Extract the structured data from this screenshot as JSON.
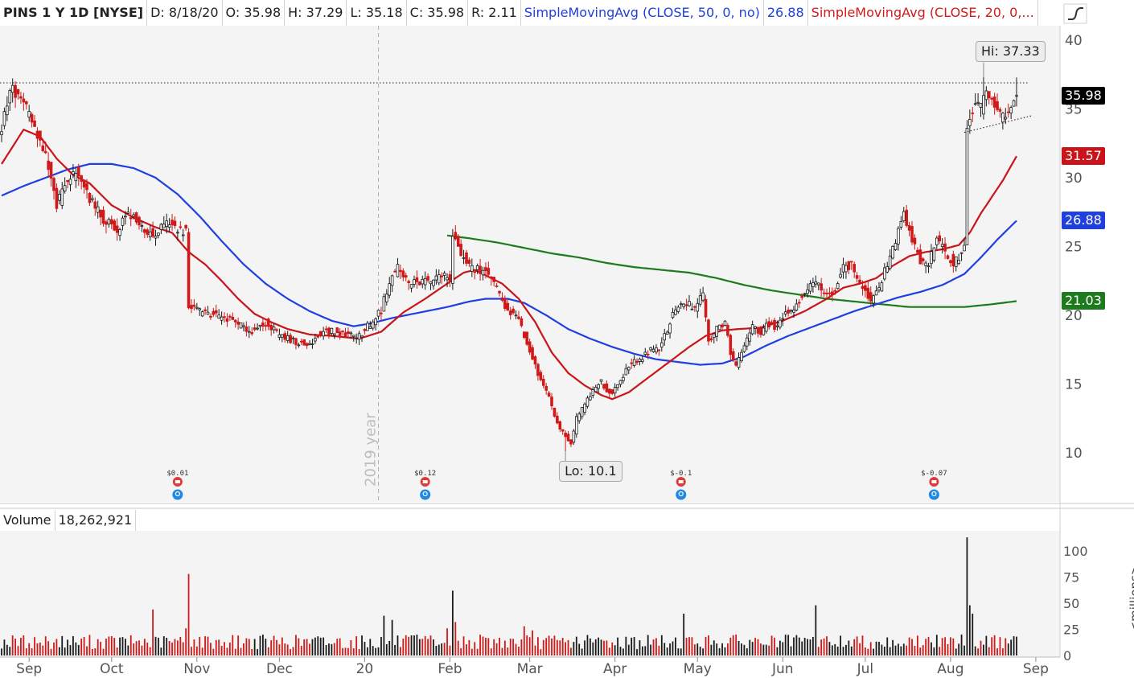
{
  "header": {
    "symbol": "PINS 1 Y 1D [NYSE]",
    "date": "D: 8/18/20",
    "open": "O: 35.98",
    "high": "H: 37.29",
    "low": "L: 35.18",
    "close": "C: 35.98",
    "range": "R: 2.11",
    "sma50_label": "SimpleMovingAvg (CLOSE, 50, 0, no)",
    "sma50_value": "26.88",
    "sma20_label": "SimpleMovingAvg (CLOSE, 20, 0,..."
  },
  "volume_header": {
    "label": "Volume",
    "value": "18,262,921"
  },
  "price_tags": [
    {
      "text": "35.98",
      "value": 35.98,
      "color": "#000000"
    },
    {
      "text": "31.57",
      "value": 31.57,
      "color": "#c9141a"
    },
    {
      "text": "26.88",
      "value": 26.88,
      "color": "#1f3fe0"
    },
    {
      "text": "21.03",
      "value": 21.03,
      "color": "#1d7a1d"
    }
  ],
  "callouts": {
    "high": "Hi: 37.33",
    "low": "Lo: 10.1"
  },
  "watermark": "2019 year",
  "volume_unit": "<millions>",
  "events": [
    {
      "label": "$0.01",
      "day": 64
    },
    {
      "label": "$0.12",
      "day": 154
    },
    {
      "label": "$-0.1",
      "day": 247
    },
    {
      "label": "$-0.07",
      "day": 339
    }
  ],
  "chart_data": {
    "type": "candlestick",
    "symbol": "PINS",
    "exchange": "NYSE",
    "price_axis": {
      "ticks": [
        10,
        15,
        20,
        25,
        30,
        35,
        40
      ],
      "range": [
        7,
        41
      ]
    },
    "volume_axis": {
      "ticks": [
        0,
        25,
        50,
        75,
        100
      ],
      "unit": "millions",
      "range": [
        0,
        115
      ]
    },
    "x_ticks": [
      {
        "label": "Sep",
        "day": 10
      },
      {
        "label": "Oct",
        "day": 40
      },
      {
        "label": "Nov",
        "day": 71
      },
      {
        "label": "Dec",
        "day": 101
      },
      {
        "label": "20",
        "day": 132
      },
      {
        "label": "Feb",
        "day": 163
      },
      {
        "label": "Mar",
        "day": 192
      },
      {
        "label": "Apr",
        "day": 223
      },
      {
        "label": "May",
        "day": 253
      },
      {
        "label": "Jun",
        "day": 284
      },
      {
        "label": "Jul",
        "day": 314
      },
      {
        "label": "Aug",
        "day": 345
      },
      {
        "label": "Sep",
        "day": 376
      }
    ],
    "price_anchors": [
      [
        0,
        33.5
      ],
      [
        3,
        36.5
      ],
      [
        8,
        35.5
      ],
      [
        12,
        33.5
      ],
      [
        16,
        31.5
      ],
      [
        20,
        28
      ],
      [
        24,
        29.8
      ],
      [
        28,
        30.5
      ],
      [
        32,
        28.5
      ],
      [
        36,
        27.2
      ],
      [
        42,
        26.2
      ],
      [
        46,
        27.5
      ],
      [
        50,
        26.5
      ],
      [
        55,
        25.8
      ],
      [
        60,
        26.6
      ],
      [
        67,
        26.0
      ],
      [
        68,
        20.8
      ],
      [
        72,
        20.3
      ],
      [
        77,
        20.0
      ],
      [
        82,
        19.8
      ],
      [
        87,
        19.2
      ],
      [
        91,
        18.8
      ],
      [
        96,
        19.5
      ],
      [
        101,
        18.5
      ],
      [
        108,
        18.0
      ],
      [
        112,
        17.8
      ],
      [
        116,
        18.8
      ],
      [
        120,
        18.8
      ],
      [
        126,
        18.6
      ],
      [
        130,
        18.5
      ],
      [
        134,
        19.4
      ],
      [
        138,
        20.4
      ],
      [
        141,
        22.5
      ],
      [
        144,
        23.5
      ],
      [
        148,
        22.3
      ],
      [
        152,
        22.5
      ],
      [
        156,
        22.4
      ],
      [
        160,
        23.0
      ],
      [
        163,
        22.6
      ],
      [
        164,
        26.0
      ],
      [
        166,
        24.8
      ],
      [
        170,
        23.5
      ],
      [
        175,
        23.2
      ],
      [
        178,
        22.8
      ],
      [
        182,
        21.0
      ],
      [
        186,
        20.0
      ],
      [
        188,
        19.6
      ],
      [
        190,
        18.6
      ],
      [
        193,
        16.8
      ],
      [
        196,
        15.2
      ],
      [
        199,
        14.0
      ],
      [
        201,
        12.5
      ],
      [
        205,
        11.2
      ],
      [
        207,
        10.6
      ],
      [
        209,
        12.5
      ],
      [
        212,
        13.5
      ],
      [
        215,
        14.5
      ],
      [
        218,
        15.2
      ],
      [
        220,
        14.5
      ],
      [
        222,
        14.2
      ],
      [
        225,
        15.3
      ],
      [
        228,
        16.4
      ],
      [
        232,
        16.8
      ],
      [
        236,
        17.5
      ],
      [
        239,
        17.4
      ],
      [
        242,
        19.0
      ],
      [
        245,
        20.5
      ],
      [
        248,
        21.0
      ],
      [
        252,
        20.5
      ],
      [
        255,
        21.5
      ],
      [
        257,
        18.0
      ],
      [
        260,
        19.0
      ],
      [
        263,
        19.5
      ],
      [
        265,
        17.3
      ],
      [
        267,
        16.2
      ],
      [
        270,
        18.0
      ],
      [
        273,
        19.2
      ],
      [
        276,
        18.8
      ],
      [
        278,
        19.5
      ],
      [
        281,
        19.2
      ],
      [
        285,
        20.1
      ],
      [
        288,
        20.5
      ],
      [
        292,
        21.8
      ],
      [
        296,
        22.4
      ],
      [
        300,
        21.3
      ],
      [
        303,
        22.0
      ],
      [
        306,
        23.5
      ],
      [
        309,
        23.6
      ],
      [
        313,
        22.0
      ],
      [
        316,
        21.0
      ],
      [
        318,
        21.5
      ],
      [
        321,
        23.2
      ],
      [
        323,
        24.3
      ],
      [
        326,
        26.0
      ],
      [
        328,
        27.2
      ],
      [
        330,
        26.3
      ],
      [
        332,
        25.0
      ],
      [
        334,
        24.0
      ],
      [
        337,
        23.8
      ],
      [
        340,
        25.5
      ],
      [
        343,
        24.5
      ],
      [
        346,
        23.8
      ],
      [
        349,
        24.6
      ],
      [
        350,
        24.9
      ],
      [
        351,
        33.8
      ],
      [
        354,
        35.6
      ],
      [
        356,
        35.0
      ],
      [
        358,
        36.5
      ],
      [
        361,
        35.2
      ],
      [
        363,
        34.6
      ],
      [
        365,
        34.2
      ],
      [
        367,
        35.0
      ],
      [
        369,
        35.98
      ]
    ],
    "sma20_anchors": [
      [
        0,
        31.0
      ],
      [
        8,
        33.5
      ],
      [
        14,
        33.0
      ],
      [
        20,
        31.4
      ],
      [
        26,
        30.2
      ],
      [
        32,
        29.6
      ],
      [
        40,
        28.0
      ],
      [
        48,
        27.1
      ],
      [
        56,
        26.4
      ],
      [
        62,
        26.0
      ],
      [
        68,
        24.6
      ],
      [
        74,
        23.7
      ],
      [
        80,
        22.5
      ],
      [
        86,
        21.2
      ],
      [
        92,
        20.1
      ],
      [
        98,
        19.5
      ],
      [
        104,
        19.0
      ],
      [
        112,
        18.6
      ],
      [
        120,
        18.5
      ],
      [
        130,
        18.3
      ],
      [
        138,
        18.8
      ],
      [
        146,
        20.2
      ],
      [
        154,
        21.2
      ],
      [
        162,
        22.3
      ],
      [
        168,
        23.1
      ],
      [
        172,
        23.3
      ],
      [
        176,
        22.9
      ],
      [
        182,
        22.3
      ],
      [
        188,
        21.2
      ],
      [
        194,
        19.5
      ],
      [
        200,
        17.3
      ],
      [
        206,
        15.8
      ],
      [
        212,
        14.9
      ],
      [
        218,
        14.2
      ],
      [
        222,
        13.9
      ],
      [
        228,
        14.4
      ],
      [
        236,
        15.6
      ],
      [
        244,
        16.8
      ],
      [
        250,
        17.7
      ],
      [
        256,
        18.5
      ],
      [
        262,
        18.9
      ],
      [
        268,
        19.0
      ],
      [
        276,
        19.1
      ],
      [
        284,
        19.6
      ],
      [
        292,
        20.3
      ],
      [
        300,
        21.2
      ],
      [
        306,
        22.0
      ],
      [
        312,
        22.3
      ],
      [
        318,
        22.7
      ],
      [
        324,
        23.6
      ],
      [
        330,
        24.3
      ],
      [
        336,
        24.6
      ],
      [
        342,
        24.8
      ],
      [
        348,
        25.1
      ],
      [
        352,
        26.0
      ],
      [
        356,
        27.4
      ],
      [
        360,
        28.6
      ],
      [
        364,
        29.8
      ],
      [
        369,
        31.57
      ]
    ],
    "sma50_anchors": [
      [
        0,
        28.7
      ],
      [
        8,
        29.4
      ],
      [
        16,
        30.0
      ],
      [
        24,
        30.6
      ],
      [
        32,
        31.0
      ],
      [
        40,
        31.0
      ],
      [
        48,
        30.7
      ],
      [
        56,
        30.0
      ],
      [
        64,
        28.8
      ],
      [
        72,
        27.2
      ],
      [
        80,
        25.4
      ],
      [
        88,
        23.7
      ],
      [
        96,
        22.3
      ],
      [
        104,
        21.2
      ],
      [
        112,
        20.3
      ],
      [
        120,
        19.6
      ],
      [
        128,
        19.2
      ],
      [
        134,
        19.4
      ],
      [
        142,
        19.8
      ],
      [
        152,
        20.2
      ],
      [
        162,
        20.6
      ],
      [
        170,
        21.0
      ],
      [
        176,
        21.2
      ],
      [
        184,
        21.2
      ],
      [
        190,
        20.9
      ],
      [
        198,
        20.0
      ],
      [
        206,
        19.0
      ],
      [
        214,
        18.3
      ],
      [
        222,
        17.7
      ],
      [
        230,
        17.2
      ],
      [
        238,
        16.8
      ],
      [
        246,
        16.6
      ],
      [
        254,
        16.4
      ],
      [
        262,
        16.5
      ],
      [
        270,
        17.0
      ],
      [
        278,
        17.8
      ],
      [
        286,
        18.5
      ],
      [
        294,
        19.1
      ],
      [
        302,
        19.7
      ],
      [
        310,
        20.3
      ],
      [
        318,
        20.8
      ],
      [
        326,
        21.3
      ],
      [
        334,
        21.7
      ],
      [
        342,
        22.2
      ],
      [
        350,
        23.0
      ],
      [
        356,
        24.2
      ],
      [
        362,
        25.5
      ],
      [
        369,
        26.88
      ]
    ],
    "sma200_anchors": [
      [
        162,
        25.8
      ],
      [
        170,
        25.6
      ],
      [
        180,
        25.3
      ],
      [
        190,
        24.9
      ],
      [
        200,
        24.5
      ],
      [
        210,
        24.2
      ],
      [
        220,
        23.8
      ],
      [
        230,
        23.5
      ],
      [
        240,
        23.3
      ],
      [
        250,
        23.1
      ],
      [
        260,
        22.7
      ],
      [
        270,
        22.2
      ],
      [
        280,
        21.8
      ],
      [
        290,
        21.5
      ],
      [
        300,
        21.2
      ],
      [
        310,
        21.0
      ],
      [
        320,
        20.8
      ],
      [
        330,
        20.6
      ],
      [
        340,
        20.6
      ],
      [
        350,
        20.6
      ],
      [
        360,
        20.8
      ],
      [
        369,
        21.03
      ]
    ],
    "volume_spikes": [
      {
        "day": 55,
        "value": 44
      },
      {
        "day": 68,
        "value": 78
      },
      {
        "day": 67,
        "value": 26
      },
      {
        "day": 139,
        "value": 38
      },
      {
        "day": 142,
        "value": 34
      },
      {
        "day": 164,
        "value": 62
      },
      {
        "day": 165,
        "value": 32
      },
      {
        "day": 162,
        "value": 26
      },
      {
        "day": 190,
        "value": 28
      },
      {
        "day": 193,
        "value": 24
      },
      {
        "day": 248,
        "value": 40
      },
      {
        "day": 296,
        "value": 48
      },
      {
        "day": 351,
        "value": 113
      },
      {
        "day": 352,
        "value": 48
      },
      {
        "day": 353,
        "value": 40
      },
      {
        "day": 349,
        "value": 20
      },
      {
        "day": 369,
        "value": 18
      }
    ],
    "last": {
      "open": 35.98,
      "high": 37.29,
      "low": 35.18,
      "close": 35.98,
      "range": 2.11,
      "volume": 18262921
    },
    "high_marker": {
      "value": 37.33,
      "day": 357
    },
    "low_marker": {
      "value": 10.1,
      "day": 205
    },
    "resistance_level": 36.9,
    "support_line": [
      [
        350,
        33.3
      ],
      [
        369,
        34.3
      ]
    ]
  }
}
